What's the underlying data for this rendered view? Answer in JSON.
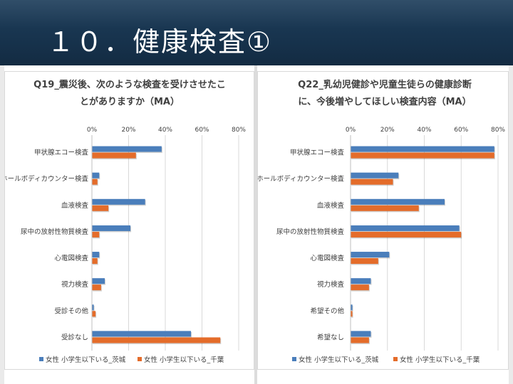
{
  "slide": {
    "title": "１０．健康検査①"
  },
  "colors": {
    "series1": "#4a7ebb",
    "series2": "#e46c2a"
  },
  "chart_data": [
    {
      "type": "bar",
      "orientation": "horizontal",
      "title_lines": [
        "Q19_震災後、次のような検査を受けさせたこ",
        "とがありますか（MA）"
      ],
      "xlim": [
        0,
        80
      ],
      "ticks": [
        "0%",
        "20%",
        "40%",
        "60%",
        "80%"
      ],
      "tick_values": [
        0,
        20,
        40,
        60,
        80
      ],
      "grid": true,
      "legend": "bottom",
      "categories": [
        "甲状腺エコー検査",
        "ホールボディカウンター検査",
        "血液検査",
        "尿中の放射性物質検査",
        "心電図検査",
        "視力検査",
        "受診その他",
        "受診なし"
      ],
      "series": [
        {
          "name": "女性 小学生以下いる_茨城",
          "values": [
            38,
            4,
            29,
            21,
            4,
            7,
            1,
            54
          ]
        },
        {
          "name": "女性 小学生以下いる_千葉",
          "values": [
            24,
            3,
            9,
            4,
            3,
            5,
            2,
            70
          ]
        }
      ]
    },
    {
      "type": "bar",
      "orientation": "horizontal",
      "title_lines": [
        "Q22_乳幼児健診や児童生徒らの健康診断",
        "に、今後増やしてほしい検査内容（MA）"
      ],
      "xlim": [
        0,
        80
      ],
      "ticks": [
        "0%",
        "20%",
        "40%",
        "60%",
        "80%"
      ],
      "tick_values": [
        0,
        20,
        40,
        60,
        80
      ],
      "grid": true,
      "legend": "bottom",
      "categories": [
        "甲状腺エコー検査",
        "ホールボディカウンター検査",
        "血液検査",
        "尿中の放射性物質検査",
        "心電図検査",
        "視力検査",
        "希望その他",
        "希望なし"
      ],
      "series": [
        {
          "name": "女性 小学生以下いる_茨城",
          "values": [
            78,
            26,
            51,
            59,
            21,
            11,
            1,
            11
          ]
        },
        {
          "name": "女性 小学生以下いる_千葉",
          "values": [
            78,
            23,
            37,
            60,
            15,
            10,
            1,
            10
          ]
        }
      ]
    }
  ]
}
